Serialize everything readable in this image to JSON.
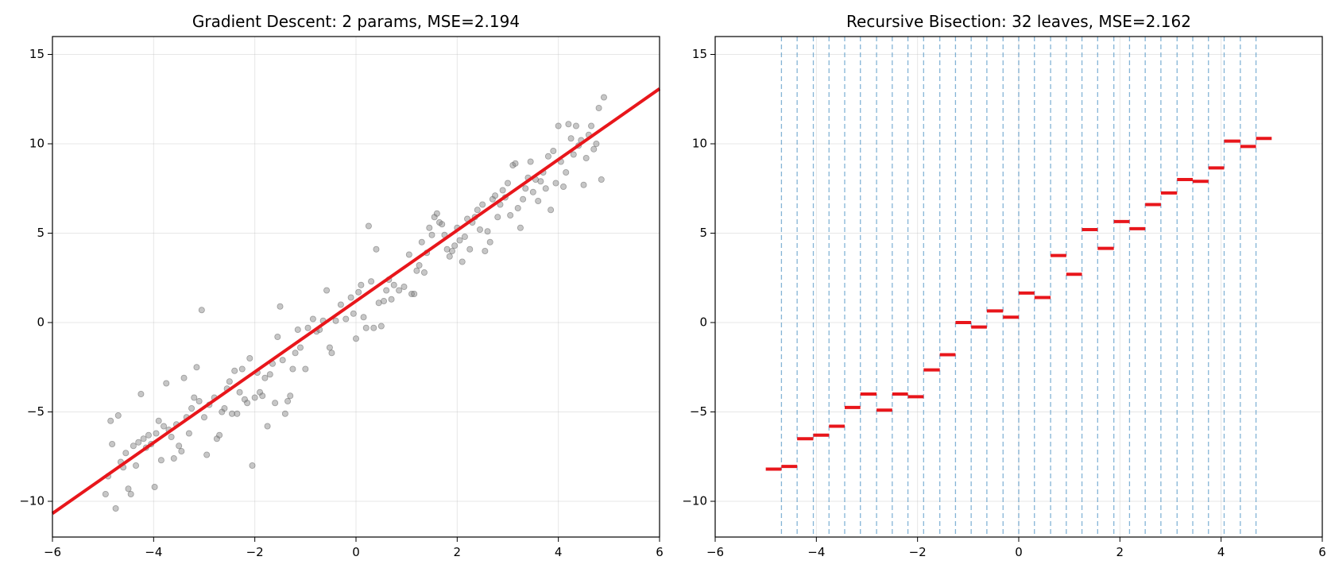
{
  "chart_data": [
    {
      "type": "scatter",
      "title": "Gradient Descent: 2 params, MSE=2.194",
      "xlabel": "",
      "ylabel": "",
      "xlim": [
        -6,
        6
      ],
      "ylim": [
        -12,
        16
      ],
      "xticks": [
        -6,
        -4,
        -2,
        0,
        2,
        4,
        6
      ],
      "yticks": [
        -10,
        -5,
        0,
        5,
        10,
        15
      ],
      "xtick_labels": [
        "−6",
        "−4",
        "−2",
        "0",
        "2",
        "4",
        "6"
      ],
      "ytick_labels": [
        "−10",
        "−5",
        "0",
        "5",
        "10",
        "15"
      ],
      "grid": true,
      "colors": {
        "points": "#808080",
        "fit": "#e8161b"
      },
      "fit_line": {
        "slope": 1.98,
        "intercept": 1.2
      },
      "points": [
        [
          -4.95,
          -9.6
        ],
        [
          -4.9,
          -8.6
        ],
        [
          -4.85,
          -5.5
        ],
        [
          -4.82,
          -6.8
        ],
        [
          -4.75,
          -10.4
        ],
        [
          -4.7,
          -5.2
        ],
        [
          -4.65,
          -7.8
        ],
        [
          -4.6,
          -8.1
        ],
        [
          -4.55,
          -7.3
        ],
        [
          -4.5,
          -9.3
        ],
        [
          -4.45,
          -9.6
        ],
        [
          -4.4,
          -6.9
        ],
        [
          -4.35,
          -8.0
        ],
        [
          -4.3,
          -6.7
        ],
        [
          -4.25,
          -4.0
        ],
        [
          -4.2,
          -6.5
        ],
        [
          -4.15,
          -7.0
        ],
        [
          -4.1,
          -6.3
        ],
        [
          -4.05,
          -6.8
        ],
        [
          -3.98,
          -9.2
        ],
        [
          -3.95,
          -6.2
        ],
        [
          -3.9,
          -5.5
        ],
        [
          -3.85,
          -7.7
        ],
        [
          -3.8,
          -5.8
        ],
        [
          -3.75,
          -3.4
        ],
        [
          -3.7,
          -6.0
        ],
        [
          -3.65,
          -6.4
        ],
        [
          -3.6,
          -7.6
        ],
        [
          -3.55,
          -5.7
        ],
        [
          -3.5,
          -6.9
        ],
        [
          -3.45,
          -7.2
        ],
        [
          -3.4,
          -3.1
        ],
        [
          -3.35,
          -5.3
        ],
        [
          -3.3,
          -6.2
        ],
        [
          -3.25,
          -4.8
        ],
        [
          -3.2,
          -4.2
        ],
        [
          -3.15,
          -2.5
        ],
        [
          -3.1,
          -4.4
        ],
        [
          -3.05,
          0.7
        ],
        [
          -3.0,
          -5.3
        ],
        [
          -2.95,
          -7.4
        ],
        [
          -2.9,
          -4.6
        ],
        [
          -2.8,
          -4.2
        ],
        [
          -2.75,
          -6.5
        ],
        [
          -2.7,
          -6.3
        ],
        [
          -2.65,
          -5.0
        ],
        [
          -2.6,
          -4.8
        ],
        [
          -2.55,
          -3.7
        ],
        [
          -2.5,
          -3.3
        ],
        [
          -2.45,
          -5.1
        ],
        [
          -2.4,
          -2.7
        ],
        [
          -2.35,
          -5.1
        ],
        [
          -2.3,
          -3.9
        ],
        [
          -2.25,
          -2.6
        ],
        [
          -2.2,
          -4.3
        ],
        [
          -2.15,
          -4.5
        ],
        [
          -2.1,
          -2.0
        ],
        [
          -2.05,
          -8.0
        ],
        [
          -2.0,
          -4.2
        ],
        [
          -1.95,
          -2.8
        ],
        [
          -1.9,
          -3.9
        ],
        [
          -1.85,
          -4.1
        ],
        [
          -1.8,
          -3.1
        ],
        [
          -1.75,
          -5.8
        ],
        [
          -1.7,
          -2.9
        ],
        [
          -1.65,
          -2.3
        ],
        [
          -1.6,
          -4.5
        ],
        [
          -1.55,
          -0.8
        ],
        [
          -1.5,
          0.9
        ],
        [
          -1.45,
          -2.1
        ],
        [
          -1.4,
          -5.1
        ],
        [
          -1.35,
          -4.4
        ],
        [
          -1.3,
          -4.1
        ],
        [
          -1.25,
          -2.6
        ],
        [
          -1.2,
          -1.7
        ],
        [
          -1.15,
          -0.4
        ],
        [
          -1.1,
          -1.4
        ],
        [
          -1.0,
          -2.6
        ],
        [
          -0.95,
          -0.3
        ],
        [
          -0.85,
          0.2
        ],
        [
          -0.78,
          -0.5
        ],
        [
          -0.72,
          -0.4
        ],
        [
          -0.65,
          0.1
        ],
        [
          -0.58,
          1.8
        ],
        [
          -0.52,
          -1.4
        ],
        [
          -0.48,
          -1.7
        ],
        [
          -0.4,
          0.1
        ],
        [
          -0.3,
          1.0
        ],
        [
          -0.2,
          0.2
        ],
        [
          -0.1,
          1.4
        ],
        [
          -0.05,
          0.5
        ],
        [
          0.0,
          -0.9
        ],
        [
          0.05,
          1.7
        ],
        [
          0.1,
          2.1
        ],
        [
          0.15,
          0.3
        ],
        [
          0.2,
          -0.3
        ],
        [
          0.25,
          5.4
        ],
        [
          0.3,
          2.3
        ],
        [
          0.35,
          -0.3
        ],
        [
          0.4,
          4.1
        ],
        [
          0.45,
          1.1
        ],
        [
          0.5,
          -0.2
        ],
        [
          0.55,
          1.2
        ],
        [
          0.6,
          1.8
        ],
        [
          0.65,
          2.4
        ],
        [
          0.7,
          1.3
        ],
        [
          0.75,
          2.1
        ],
        [
          0.85,
          1.8
        ],
        [
          0.95,
          2.0
        ],
        [
          1.05,
          3.8
        ],
        [
          1.1,
          1.6
        ],
        [
          1.15,
          1.6
        ],
        [
          1.2,
          2.9
        ],
        [
          1.25,
          3.2
        ],
        [
          1.3,
          4.5
        ],
        [
          1.35,
          2.8
        ],
        [
          1.4,
          3.9
        ],
        [
          1.45,
          5.3
        ],
        [
          1.5,
          4.9
        ],
        [
          1.55,
          5.9
        ],
        [
          1.6,
          6.1
        ],
        [
          1.65,
          5.6
        ],
        [
          1.7,
          5.5
        ],
        [
          1.75,
          4.9
        ],
        [
          1.8,
          4.1
        ],
        [
          1.85,
          3.7
        ],
        [
          1.9,
          4.0
        ],
        [
          1.95,
          4.3
        ],
        [
          2.0,
          5.3
        ],
        [
          2.05,
          4.6
        ],
        [
          2.1,
          3.4
        ],
        [
          2.15,
          4.8
        ],
        [
          2.2,
          5.8
        ],
        [
          2.25,
          4.1
        ],
        [
          2.3,
          5.6
        ],
        [
          2.35,
          5.9
        ],
        [
          2.4,
          6.3
        ],
        [
          2.45,
          5.2
        ],
        [
          2.5,
          6.6
        ],
        [
          2.55,
          4.0
        ],
        [
          2.6,
          5.1
        ],
        [
          2.65,
          4.5
        ],
        [
          2.7,
          6.9
        ],
        [
          2.75,
          7.1
        ],
        [
          2.8,
          5.9
        ],
        [
          2.85,
          6.6
        ],
        [
          2.9,
          7.4
        ],
        [
          2.95,
          7.0
        ],
        [
          3.0,
          7.8
        ],
        [
          3.05,
          6.0
        ],
        [
          3.1,
          8.8
        ],
        [
          3.15,
          8.9
        ],
        [
          3.2,
          6.4
        ],
        [
          3.25,
          5.3
        ],
        [
          3.3,
          6.9
        ],
        [
          3.35,
          7.5
        ],
        [
          3.4,
          8.1
        ],
        [
          3.45,
          9.0
        ],
        [
          3.5,
          7.3
        ],
        [
          3.55,
          8.0
        ],
        [
          3.6,
          6.8
        ],
        [
          3.65,
          7.9
        ],
        [
          3.7,
          8.4
        ],
        [
          3.75,
          7.5
        ],
        [
          3.8,
          9.3
        ],
        [
          3.85,
          6.3
        ],
        [
          3.9,
          9.6
        ],
        [
          3.95,
          7.8
        ],
        [
          4.0,
          11.0
        ],
        [
          4.05,
          9.0
        ],
        [
          4.1,
          7.6
        ],
        [
          4.15,
          8.4
        ],
        [
          4.2,
          11.1
        ],
        [
          4.25,
          10.3
        ],
        [
          4.3,
          9.4
        ],
        [
          4.35,
          11.0
        ],
        [
          4.4,
          9.9
        ],
        [
          4.45,
          10.2
        ],
        [
          4.5,
          7.7
        ],
        [
          4.55,
          9.2
        ],
        [
          4.6,
          10.5
        ],
        [
          4.65,
          11.0
        ],
        [
          4.7,
          9.7
        ],
        [
          4.75,
          10.0
        ],
        [
          4.8,
          12.0
        ],
        [
          4.85,
          8.0
        ],
        [
          4.9,
          12.6
        ]
      ]
    },
    {
      "type": "scatter",
      "title": "Recursive Bisection: 32 leaves, MSE=2.162",
      "xlabel": "",
      "ylabel": "",
      "xlim": [
        -6,
        6
      ],
      "ylim": [
        -12,
        16
      ],
      "xticks": [
        -6,
        -4,
        -2,
        0,
        2,
        4,
        6
      ],
      "yticks": [
        -10,
        -5,
        0,
        5,
        10,
        15
      ],
      "xtick_labels": [
        "−6",
        "−4",
        "−2",
        "0",
        "2",
        "4",
        "6"
      ],
      "ytick_labels": [
        "−10",
        "−5",
        "0",
        "5",
        "10",
        "15"
      ],
      "grid": true,
      "colors": {
        "points": "#808080",
        "leaves": "#e8161b",
        "splits": "#1f77b4"
      },
      "splits": [
        -4.69,
        -4.38,
        -4.06,
        -3.75,
        -3.44,
        -3.13,
        -2.81,
        -2.5,
        -2.19,
        -1.88,
        -1.56,
        -1.25,
        -0.94,
        -0.63,
        -0.31,
        0.0,
        0.31,
        0.63,
        0.94,
        1.25,
        1.56,
        1.88,
        2.19,
        2.5,
        2.81,
        3.13,
        3.44,
        3.75,
        4.06,
        4.38,
        4.69
      ],
      "leaves": [
        {
          "x0": -5.0,
          "x1": -4.69,
          "y": -8.2
        },
        {
          "x0": -4.69,
          "x1": -4.38,
          "y": -8.05
        },
        {
          "x0": -4.38,
          "x1": -4.06,
          "y": -6.5
        },
        {
          "x0": -4.06,
          "x1": -3.75,
          "y": -6.3
        },
        {
          "x0": -3.75,
          "x1": -3.44,
          "y": -5.8
        },
        {
          "x0": -3.44,
          "x1": -3.13,
          "y": -4.75
        },
        {
          "x0": -3.13,
          "x1": -2.81,
          "y": -4.0
        },
        {
          "x0": -2.81,
          "x1": -2.5,
          "y": -4.9
        },
        {
          "x0": -2.5,
          "x1": -2.19,
          "y": -4.0
        },
        {
          "x0": -2.19,
          "x1": -1.88,
          "y": -4.15
        },
        {
          "x0": -1.88,
          "x1": -1.56,
          "y": -2.65
        },
        {
          "x0": -1.56,
          "x1": -1.25,
          "y": -1.8
        },
        {
          "x0": -1.25,
          "x1": -0.94,
          "y": 0.0
        },
        {
          "x0": -0.94,
          "x1": -0.63,
          "y": -0.25
        },
        {
          "x0": -0.63,
          "x1": -0.31,
          "y": 0.65
        },
        {
          "x0": -0.31,
          "x1": 0.0,
          "y": 0.3
        },
        {
          "x0": 0.0,
          "x1": 0.31,
          "y": 1.65
        },
        {
          "x0": 0.31,
          "x1": 0.63,
          "y": 1.4
        },
        {
          "x0": 0.63,
          "x1": 0.94,
          "y": 3.75
        },
        {
          "x0": 0.94,
          "x1": 1.25,
          "y": 2.7
        },
        {
          "x0": 1.25,
          "x1": 1.56,
          "y": 5.2
        },
        {
          "x0": 1.56,
          "x1": 1.88,
          "y": 4.15
        },
        {
          "x0": 1.88,
          "x1": 2.19,
          "y": 5.65
        },
        {
          "x0": 2.19,
          "x1": 2.5,
          "y": 5.25
        },
        {
          "x0": 2.5,
          "x1": 2.81,
          "y": 6.6
        },
        {
          "x0": 2.81,
          "x1": 3.13,
          "y": 7.25
        },
        {
          "x0": 3.13,
          "x1": 3.44,
          "y": 8.0
        },
        {
          "x0": 3.44,
          "x1": 3.75,
          "y": 7.9
        },
        {
          "x0": 3.75,
          "x1": 4.06,
          "y": 8.65
        },
        {
          "x0": 4.06,
          "x1": 4.38,
          "y": 10.15
        },
        {
          "x0": 4.38,
          "x1": 4.69,
          "y": 9.85
        },
        {
          "x0": 4.69,
          "x1": 5.0,
          "y": 10.3
        }
      ]
    }
  ]
}
